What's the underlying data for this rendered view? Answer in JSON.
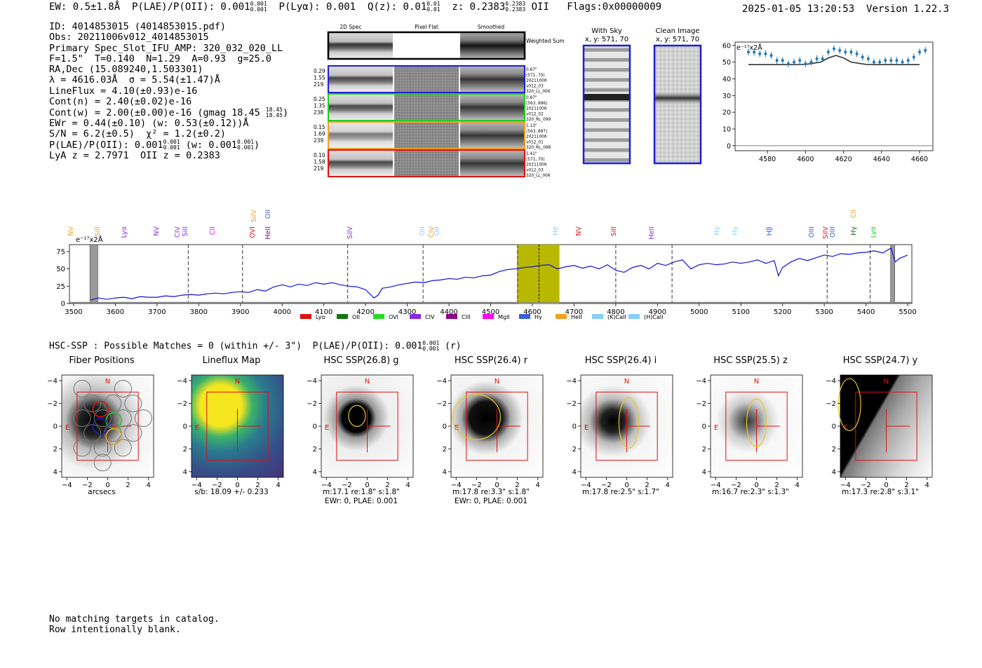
{
  "header": {
    "left": "EW: 0.5±1.8Å  P(LAE)/P(OII): 0.001",
    "left_frac": {
      "num": "0.001",
      "den": "0.001"
    },
    "plya": "P(Lyα): 0.001",
    "qz": "Q(z): 0.01",
    "qz_frac": {
      "num": "0.01",
      "den": "0.01"
    },
    "z": "z: 0.2383",
    "z_frac": {
      "num": "0.2383",
      "den": "0.2383"
    },
    "z_line": "OII",
    "flags": "Flags:0x00000009",
    "timestamp": "2025-01-05 13:20:53",
    "version": "Version 1.22.3"
  },
  "info": {
    "id": "ID: 4014853015 (4014853015.pdf)",
    "obs": "Obs: 20211006v012_4014853015",
    "slot": "Primary Spec_Slot_IFU_AMP: 320_032_020_LL",
    "fit": "F=1.5\"  T=0.140  N=1.29  A=0.93  g=25.0",
    "radec": "RA,Dec (15.089240,1.503301)",
    "lambda": "λ = 4616.03Å  σ = 5.54(±1.47)Å",
    "lineflux": "LineFlux = 4.10(±0.93)e-16",
    "contn": "Cont(n) = 2.40(±0.02)e-16",
    "contw": "Cont(w) = 2.00(±0.00)e-16 (gmag 18.45",
    "gmag_frac": {
      "num": "18.45",
      "den": "18.45"
    },
    "ewr": "EWr = 0.44(±0.10) (w: 0.53(±0.12))Å",
    "sn": "S/N = 6.2(±0.5)  χ² = 1.2(±0.2)",
    "plae": "P(LAE)/P(OII): 0.001",
    "plae_frac": {
      "num": "0.001",
      "den": "0.001"
    },
    "plae_w": "(w: 0.001",
    "plae_w_frac": {
      "num": "0.001",
      "den": "0.001"
    },
    "lyaz": "LyA z = 2.7971  OII z = 0.2383"
  },
  "stamps": {
    "col_titles": [
      "2D Spec",
      "Pixel Flat",
      "Smoothed"
    ],
    "weighted_sum": "Weighted Sum",
    "rows": [
      {
        "left": [
          "0.29",
          "1.55",
          "219"
        ],
        "right": [
          "0.67\"",
          "(571, 70)",
          "20211006",
          "v012_03",
          "320_LL_006"
        ],
        "color": "#1f1fd0"
      },
      {
        "left": [
          "0.25",
          "1.35",
          "238"
        ],
        "right": [
          "0.87\"",
          "(563, 896)",
          "20211006",
          "v012_02",
          "320_RL_099"
        ],
        "color": "#22cc22"
      },
      {
        "left": [
          "0.15",
          "1.69",
          "239"
        ],
        "right": [
          "1.13\"",
          "(563, 887)",
          "20211006",
          "v012_01",
          "320_RL_098"
        ],
        "color": "#f0a020"
      },
      {
        "left": [
          "0.10",
          "1.58",
          "219"
        ],
        "right": [
          "1.41\"",
          "(571, 70)",
          "20211006",
          "v012_03",
          "320_LL_006"
        ],
        "color": "#e01010"
      }
    ]
  },
  "sky": {
    "with_sky": "With Sky",
    "with_sky_xy": "x, y: 571, 70",
    "clean": "Clean Image",
    "clean_xy": "x, y: 571, 70"
  },
  "zoom_chart": {
    "ylabel": "e⁻¹⁷x2Å",
    "xticks": [
      "4580",
      "4600",
      "4620",
      "4640",
      "4660"
    ],
    "yticks": [
      "0",
      "10",
      "20",
      "30",
      "40",
      "50",
      "60"
    ]
  },
  "spec_lines_top": [
    "SiIV",
    "OII",
    "CII"
  ],
  "spec_lines_mid": [
    "NV",
    "SiII",
    "Lyα",
    "NV",
    "CIV",
    "SiII",
    "CII",
    "OVI",
    "HeII",
    "SiIV",
    "OII",
    "CIV",
    "OII",
    "He",
    "NV",
    "SiII",
    "HeII",
    "Hγ",
    "Hγ",
    "Hβ",
    "OIII",
    "SiIV",
    "OIII",
    "Hγ",
    "Lyα"
  ],
  "legend": [
    {
      "name": "Lyα",
      "color": "#e01010"
    },
    {
      "name": "OII",
      "color": "#137313"
    },
    {
      "name": "OVI",
      "color": "#22dd22"
    },
    {
      "name": "CIV",
      "color": "#8a2be2"
    },
    {
      "name": "CIII",
      "color": "#8b008b"
    },
    {
      "name": "MgII",
      "color": "#ff00ff"
    },
    {
      "name": "Hγ",
      "color": "#3a5fe0"
    },
    {
      "name": "HeII",
      "color": "#f0a020"
    },
    {
      "name": "(K)CaII",
      "color": "#87cefa"
    },
    {
      "name": "(H)CaII",
      "color": "#87cefa"
    }
  ],
  "full_chart": {
    "ylabel": "e⁻¹⁷x2Å",
    "xticks": [
      "3500",
      "3600",
      "3700",
      "3800",
      "3900",
      "4000",
      "4100",
      "4200",
      "4300",
      "4400",
      "4500",
      "4600",
      "4700",
      "4800",
      "4900",
      "5000",
      "5100",
      "5200",
      "5300",
      "5400",
      "5500"
    ],
    "yticks": [
      "0",
      "25",
      "50",
      "75"
    ]
  },
  "hsc": {
    "line": "HSC-SSP : Possible Matches = 0 (within +/- 3\")  P(LAE)/P(OII): 0.001",
    "frac": {
      "num": "0.001",
      "den": "0.001"
    },
    "band": "(r)"
  },
  "cutouts": [
    {
      "title": "Fiber Positions",
      "cap1": "arcsecs",
      "cap2": ""
    },
    {
      "title": "Lineflux Map",
      "cap1": "s/b: 18.09 +/- 0.233",
      "cap2": ""
    },
    {
      "title": "HSC SSP(26.8) g",
      "cap1": "m:17.1  re:1.8\"  s:1.8\"",
      "cap2": "EWr: 0, PLAE: 0.001"
    },
    {
      "title": "HSC SSP(26.4) r",
      "cap1": "m:17.8  re:3.3\"  s:1.8\"",
      "cap2": "EWr: 0, PLAE: 0.001"
    },
    {
      "title": "HSC SSP(26.4) i",
      "cap1": "m:17.8  re:2.5\"  s:1.7\"",
      "cap2": ""
    },
    {
      "title": "HSC SSP(25.5) z",
      "cap1": "m:16.7  re:2.3\"  s:1.3\"",
      "cap2": ""
    },
    {
      "title": "HSC SSP(24.7) y",
      "cap1": "m:17.3  re:2.8\"  s:3.1\"",
      "cap2": ""
    }
  ],
  "cutout_axis": {
    "ticks": [
      "−4",
      "−2",
      "0",
      "2",
      "4"
    ],
    "north": "N",
    "east": "E"
  },
  "catalog": {
    "line1": "No matching targets in catalog.",
    "line2": "Row intentionally blank."
  },
  "chart_data": [
    {
      "type": "line",
      "title": "",
      "xlabel": "",
      "ylabel": "e⁻¹⁷x2Å",
      "xlim": [
        4563,
        4667
      ],
      "ylim": [
        -3,
        62
      ],
      "series": [
        {
          "name": "data",
          "x": [
            4570,
            4573,
            4576,
            4579,
            4582,
            4585,
            4588,
            4591,
            4594,
            4597,
            4600,
            4603,
            4606,
            4609,
            4612,
            4615,
            4618,
            4621,
            4624,
            4627,
            4630,
            4633,
            4636,
            4639,
            4642,
            4645,
            4648,
            4651,
            4654,
            4657,
            4660,
            4663
          ],
          "y": [
            56,
            56,
            55,
            55,
            54,
            51,
            51,
            49,
            50,
            51,
            49,
            50,
            52,
            52,
            56,
            58,
            57,
            56,
            56,
            55,
            53,
            52,
            50,
            50,
            51,
            51,
            51,
            50,
            51,
            53,
            56,
            57
          ]
        },
        {
          "name": "model",
          "x": [
            4570,
            4590,
            4600,
            4608,
            4612,
            4616,
            4620,
            4624,
            4632,
            4640,
            4660
          ],
          "y": [
            48.5,
            48.5,
            48.6,
            50,
            52.5,
            54,
            52.5,
            50,
            48.6,
            48.5,
            48.5
          ]
        }
      ]
    },
    {
      "type": "line",
      "title": "",
      "xlabel": "",
      "ylabel": "e⁻¹⁷x2Å",
      "xlim": [
        3490,
        5510
      ],
      "ylim": [
        0,
        85
      ],
      "series": [
        {
          "name": "spectrum",
          "x": [
            3540,
            3560,
            3580,
            3600,
            3620,
            3640,
            3660,
            3680,
            3700,
            3720,
            3740,
            3760,
            3780,
            3800,
            3820,
            3840,
            3860,
            3880,
            3900,
            3920,
            3940,
            3960,
            3980,
            4000,
            4020,
            4040,
            4060,
            4080,
            4100,
            4120,
            4140,
            4160,
            4180,
            4200,
            4220,
            4230,
            4240,
            4260,
            4280,
            4300,
            4320,
            4340,
            4360,
            4380,
            4400,
            4420,
            4440,
            4460,
            4480,
            4500,
            4520,
            4540,
            4560,
            4580,
            4600,
            4620,
            4640,
            4660,
            4680,
            4700,
            4720,
            4740,
            4760,
            4780,
            4800,
            4820,
            4840,
            4860,
            4880,
            4900,
            4920,
            4940,
            4960,
            4980,
            5000,
            5020,
            5040,
            5060,
            5080,
            5100,
            5120,
            5140,
            5160,
            5180,
            5190,
            5200,
            5220,
            5240,
            5260,
            5280,
            5300,
            5320,
            5340,
            5360,
            5380,
            5400,
            5420,
            5440,
            5460,
            5470,
            5480,
            5500
          ],
          "y": [
            5,
            8,
            6,
            8,
            9,
            7,
            10,
            9,
            9,
            11,
            10,
            12,
            13,
            12,
            14,
            15,
            14,
            16,
            17,
            16,
            20,
            18,
            24,
            27,
            24,
            28,
            26,
            30,
            28,
            30,
            27,
            25,
            24,
            20,
            8,
            12,
            22,
            24,
            27,
            29,
            31,
            30,
            33,
            34,
            36,
            35,
            38,
            37,
            40,
            41,
            46,
            49,
            50,
            52,
            53,
            55,
            56,
            50,
            53,
            55,
            51,
            54,
            50,
            56,
            48,
            45,
            52,
            55,
            50,
            58,
            55,
            60,
            63,
            50,
            56,
            58,
            56,
            57,
            60,
            58,
            60,
            63,
            58,
            62,
            40,
            52,
            60,
            65,
            62,
            66,
            70,
            68,
            72,
            71,
            73,
            74,
            76,
            73,
            80,
            60,
            65,
            70
          ]
        }
      ],
      "highlight_band": [
        4563,
        4665
      ],
      "marker": 4616,
      "dashed_lines": [
        3775,
        3905,
        4157,
        4338,
        4565,
        4800,
        4935,
        5307,
        5410
      ]
    }
  ]
}
